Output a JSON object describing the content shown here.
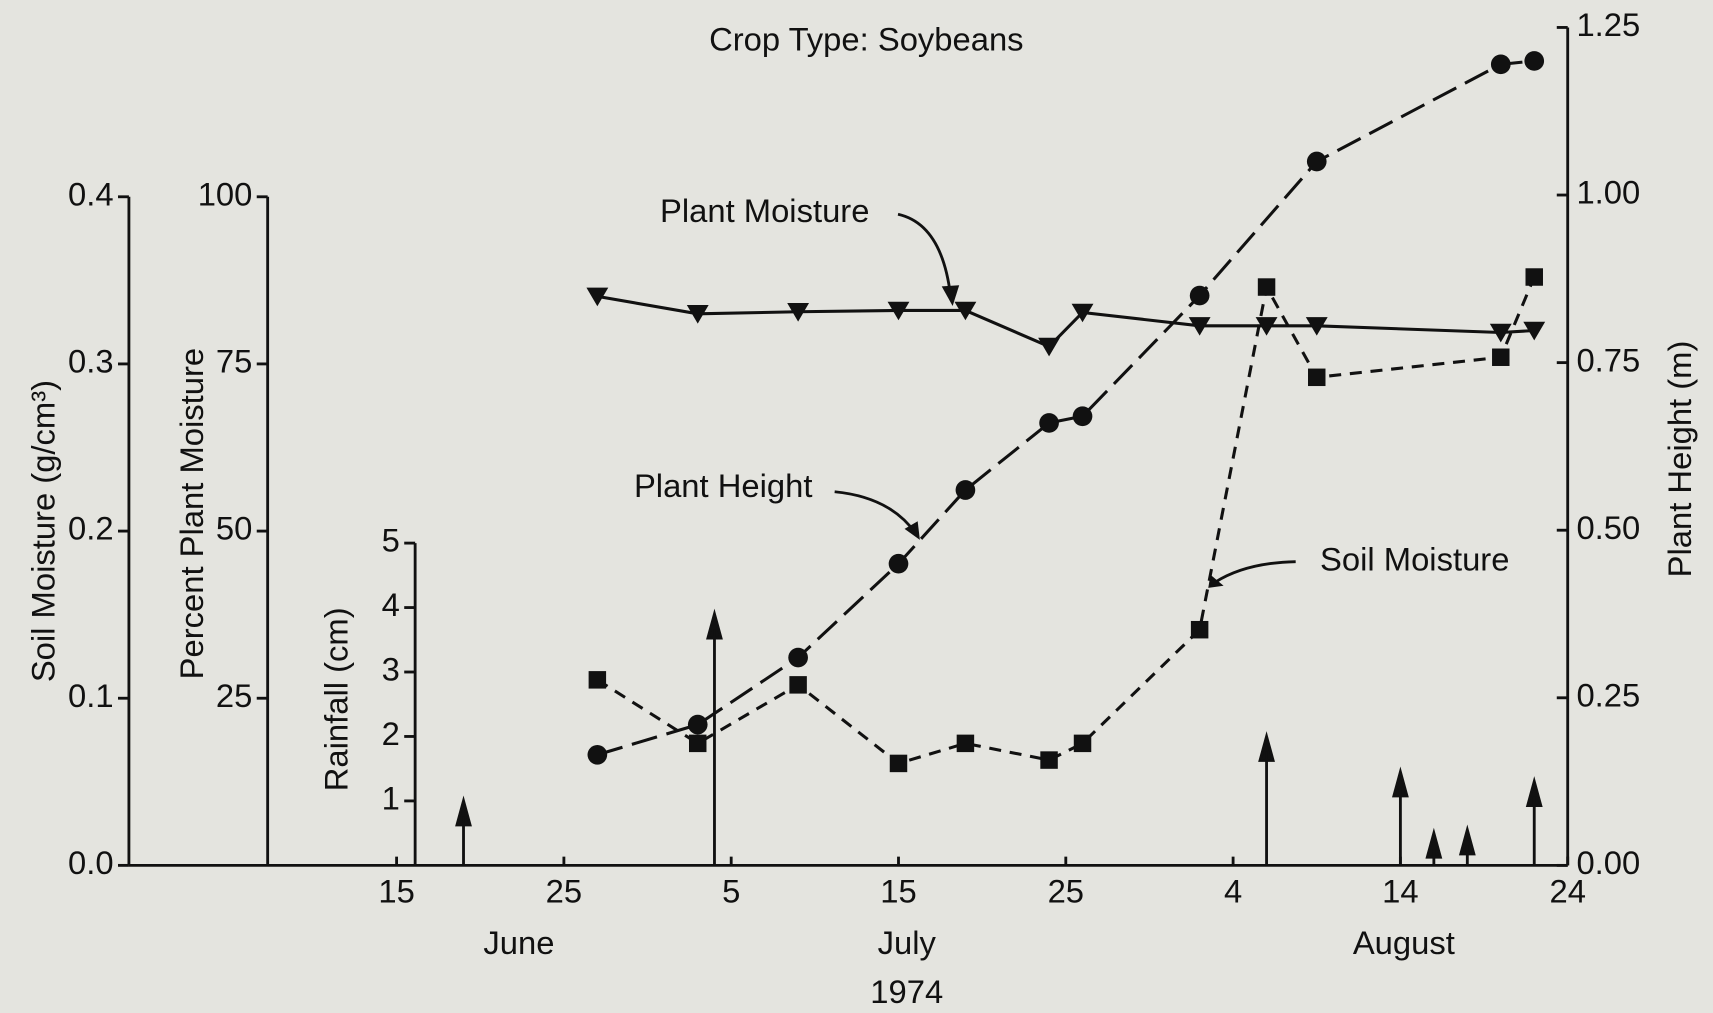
{
  "chart_data": {
    "type": "line",
    "title": "Crop Type: Soybeans",
    "xlim": [
      "1974-05-30",
      "1974-08-24"
    ],
    "xticks": [
      {
        "value": "1974-06-15",
        "label": "15"
      },
      {
        "value": "1974-06-25",
        "label": "25"
      },
      {
        "value": "1974-07-05",
        "label": "5"
      },
      {
        "value": "1974-07-15",
        "label": "15"
      },
      {
        "value": "1974-07-25",
        "label": "25"
      },
      {
        "value": "1974-08-04",
        "label": "4"
      },
      {
        "value": "1974-08-14",
        "label": "14"
      },
      {
        "value": "1974-08-24",
        "label": "24"
      }
    ],
    "month_labels": [
      "June",
      "July",
      "August"
    ],
    "year_label": "1974",
    "axes": [
      {
        "id": "soil",
        "label": "Soil Moisture (g/cm³)",
        "lim": [
          0,
          0.4
        ],
        "ticks": [
          {
            "value": 0,
            "label": "0.0"
          },
          0.1,
          0.2,
          0.3,
          0.4
        ]
      },
      {
        "id": "pm",
        "label": "Percent Plant Moisture",
        "lim": [
          0,
          100
        ],
        "ticks": [
          25,
          50,
          75,
          100
        ]
      },
      {
        "id": "rain",
        "label": "Rainfall (cm)",
        "lim": [
          0,
          5
        ],
        "ticks": [
          1,
          2,
          3,
          4,
          5
        ]
      },
      {
        "id": "height",
        "label": "Plant Height (m)",
        "lim": [
          0,
          1.25
        ],
        "ticks": [
          {
            "value": 0,
            "label": "0.00"
          },
          0.25,
          {
            "value": 0.5,
            "label": "0.50"
          },
          0.75,
          {
            "value": 1,
            "label": "1.00"
          },
          1.25
        ]
      }
    ],
    "series": [
      {
        "name": "Plant Moisture",
        "axis": "pm",
        "color": "#111111",
        "marker": "triangle",
        "dash": "solid",
        "x": [
          "1974-06-27",
          "1974-07-03",
          "1974-07-09",
          "1974-07-15",
          "1974-07-19",
          "1974-07-24",
          "1974-07-26",
          "1974-08-02",
          "1974-08-06",
          "1974-08-09",
          "1974-08-20",
          "1974-08-22"
        ],
        "values": [
          85.1,
          82.5,
          82.8,
          83,
          83,
          77.6,
          82.7,
          80.7,
          80.7,
          80.7,
          79.7,
          80
        ]
      },
      {
        "name": "Plant Height",
        "axis": "height",
        "color": "#111111",
        "marker": "circle",
        "dash": "long",
        "x": [
          "1974-06-27",
          "1974-07-03",
          "1974-07-09",
          "1974-07-15",
          "1974-07-19",
          "1974-07-24",
          "1974-07-26",
          "1974-08-02",
          "1974-08-09",
          "1974-08-20",
          "1974-08-22"
        ],
        "values": [
          0.165,
          0.21,
          0.31,
          0.45,
          0.56,
          0.66,
          0.67,
          0.85,
          1.05,
          1.195,
          1.2
        ]
      },
      {
        "name": "Soil Moisture",
        "axis": "soil",
        "color": "#111111",
        "marker": "square",
        "dash": "short",
        "x": [
          "1974-06-27",
          "1974-07-03",
          "1974-07-09",
          "1974-07-15",
          "1974-07-19",
          "1974-07-24",
          "1974-07-26",
          "1974-08-02",
          "1974-08-06",
          "1974-08-09",
          "1974-08-20",
          "1974-08-22"
        ],
        "values": [
          0.111,
          0.073,
          0.108,
          0.061,
          0.073,
          0.063,
          0.073,
          0.141,
          0.346,
          0.292,
          0.304,
          0.352
        ]
      },
      {
        "axis": "rain",
        "color": "#111111",
        "style": "arrow",
        "x": [
          "1974-06-19",
          "1974-07-04",
          "1974-08-06",
          "1974-08-14",
          "1974-08-16",
          "1974-08-18",
          "1974-08-22"
        ],
        "values": [
          1.0,
          3.9,
          2.0,
          1.45,
          0.5,
          0.55,
          1.3
        ]
      }
    ]
  }
}
